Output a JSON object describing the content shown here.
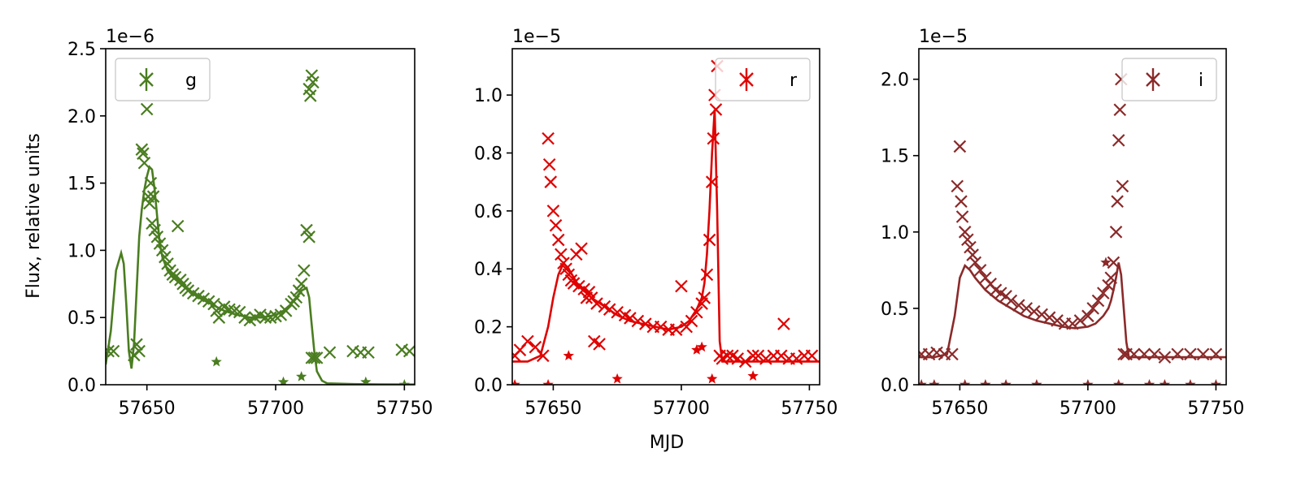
{
  "figure": {
    "xlabel": "MJD",
    "ylabel": "Flux, relative units"
  },
  "chart_data": [
    {
      "type": "scatter",
      "band": "g",
      "color": "#4a7d20",
      "scale_label": "1e−6",
      "xlim": [
        57634,
        57754
      ],
      "ylim": [
        0,
        2.5
      ],
      "xticks": [
        {
          "v": 57650,
          "label": "57650"
        },
        {
          "v": 57700,
          "label": "57700"
        },
        {
          "v": 57750,
          "label": "57750"
        }
      ],
      "yticks": [
        {
          "v": 0.0,
          "label": "0.0"
        },
        {
          "v": 0.5,
          "label": "0.5"
        },
        {
          "v": 1.0,
          "label": "1.0"
        },
        {
          "v": 1.5,
          "label": "1.5"
        },
        {
          "v": 2.0,
          "label": "2.0"
        },
        {
          "v": 2.5,
          "label": "2.5"
        }
      ],
      "legend": {
        "label": "g",
        "position": "upper-left"
      },
      "grid": false,
      "model_curve": {
        "x": [
          57634,
          57636,
          57638,
          57640,
          57641,
          57642,
          57643,
          57644,
          57645,
          57646,
          57647,
          57648,
          57649,
          57650,
          57651,
          57652,
          57653,
          57654,
          57655,
          57656,
          57658,
          57660,
          57665,
          57670,
          57675,
          57680,
          57685,
          57690,
          57695,
          57700,
          57703,
          57706,
          57708,
          57710,
          57712,
          57713,
          57714,
          57715,
          57716,
          57718,
          57720,
          57730,
          57740,
          57754
        ],
        "y": [
          0.15,
          0.4,
          0.85,
          0.98,
          0.9,
          0.6,
          0.25,
          0.12,
          0.3,
          0.7,
          1.1,
          1.3,
          1.45,
          1.55,
          1.62,
          1.6,
          1.45,
          1.25,
          1.05,
          0.95,
          0.85,
          0.8,
          0.72,
          0.65,
          0.6,
          0.55,
          0.52,
          0.5,
          0.5,
          0.52,
          0.55,
          0.6,
          0.65,
          0.7,
          0.72,
          0.65,
          0.45,
          0.25,
          0.1,
          0.03,
          0.01,
          0.005,
          0.003,
          0.002
        ]
      },
      "cross_points": {
        "x": [
          57635,
          57637,
          57645,
          57646,
          57647,
          57648,
          57648.5,
          57649,
          57650,
          57650.5,
          57651,
          57651.5,
          57652,
          57652.5,
          57653,
          57654,
          57655,
          57656,
          57657,
          57658,
          57659,
          57660,
          57661,
          57662,
          57663,
          57664,
          57665,
          57666,
          57668,
          57670,
          57672,
          57674,
          57676,
          57677,
          57678,
          57680,
          57682,
          57684,
          57686,
          57688,
          57690,
          57692,
          57694,
          57696,
          57698,
          57700,
          57702,
          57704,
          57706,
          57707,
          57708,
          57709,
          57710,
          57711,
          57712,
          57713,
          57713,
          57713.5,
          57714,
          57714,
          57714.5,
          57715,
          57716,
          57721,
          57730,
          57733,
          57736,
          57749,
          57752
        ],
        "y": [
          0.25,
          0.25,
          0.22,
          0.3,
          0.25,
          1.75,
          1.72,
          1.65,
          2.05,
          1.4,
          1.35,
          1.5,
          1.2,
          1.4,
          1.15,
          1.1,
          1.05,
          1.0,
          0.95,
          0.9,
          0.85,
          0.82,
          0.8,
          1.18,
          0.78,
          0.75,
          0.72,
          0.7,
          0.68,
          0.66,
          0.64,
          0.62,
          0.6,
          0.55,
          0.5,
          0.58,
          0.56,
          0.55,
          0.54,
          0.5,
          0.48,
          0.5,
          0.52,
          0.5,
          0.5,
          0.51,
          0.52,
          0.55,
          0.6,
          0.62,
          0.65,
          0.7,
          0.75,
          0.85,
          1.15,
          1.1,
          2.2,
          2.15,
          2.3,
          0.2,
          2.25,
          0.2,
          0.2,
          0.24,
          0.25,
          0.24,
          0.24,
          0.26,
          0.25
        ]
      },
      "star_points": {
        "x": [
          57677,
          57703,
          57710,
          57735,
          57750
        ],
        "y": [
          0.17,
          0.02,
          0.06,
          0.02,
          0.0
        ]
      }
    },
    {
      "type": "scatter",
      "band": "r",
      "color": "#e00000",
      "scale_label": "1e−5",
      "xlim": [
        57634,
        57754
      ],
      "ylim": [
        0,
        1.16
      ],
      "xticks": [
        {
          "v": 57650,
          "label": "57650"
        },
        {
          "v": 57700,
          "label": "57700"
        },
        {
          "v": 57750,
          "label": "57750"
        }
      ],
      "yticks": [
        {
          "v": 0.0,
          "label": "0.0"
        },
        {
          "v": 0.2,
          "label": "0.2"
        },
        {
          "v": 0.4,
          "label": "0.4"
        },
        {
          "v": 0.6,
          "label": "0.6"
        },
        {
          "v": 0.8,
          "label": "0.8"
        },
        {
          "v": 1.0,
          "label": "1.0"
        }
      ],
      "legend": {
        "label": "r",
        "position": "upper-right"
      },
      "grid": false,
      "model_curve": {
        "x": [
          57634,
          57640,
          57645,
          57648,
          57650,
          57652,
          57654,
          57656,
          57658,
          57660,
          57665,
          57670,
          57675,
          57680,
          57685,
          57690,
          57695,
          57700,
          57703,
          57706,
          57708,
          57709,
          57710,
          57711,
          57712,
          57713,
          57714,
          57715,
          57716,
          57720,
          57730,
          57740,
          57754
        ],
        "y": [
          0.08,
          0.08,
          0.1,
          0.2,
          0.3,
          0.38,
          0.42,
          0.4,
          0.37,
          0.34,
          0.3,
          0.27,
          0.24,
          0.22,
          0.21,
          0.2,
          0.19,
          0.2,
          0.22,
          0.26,
          0.3,
          0.35,
          0.45,
          0.6,
          0.8,
          0.95,
          0.6,
          0.15,
          0.08,
          0.08,
          0.08,
          0.08,
          0.08
        ]
      },
      "cross_points": {
        "x": [
          57635,
          57637,
          57640,
          57643,
          57646,
          57648,
          57648.5,
          57649,
          57650,
          57651,
          57652,
          57653,
          57654,
          57655,
          57656,
          57657,
          57658,
          57659,
          57660,
          57661,
          57662,
          57663,
          57664,
          57665,
          57666,
          57667,
          57668,
          57670,
          57672,
          57675,
          57678,
          57680,
          57683,
          57686,
          57689,
          57692,
          57695,
          57698,
          57700,
          57702,
          57704,
          57706,
          57708,
          57709,
          57710,
          57711,
          57712,
          57712.5,
          57713,
          57713.5,
          57714,
          57715,
          57716,
          57718,
          57720,
          57722,
          57725,
          57728,
          57730,
          57733,
          57736,
          57739,
          57740,
          57742,
          57745,
          57748,
          57751
        ],
        "y": [
          0.1,
          0.12,
          0.15,
          0.13,
          0.1,
          0.85,
          0.76,
          0.7,
          0.6,
          0.55,
          0.5,
          0.45,
          0.42,
          0.4,
          0.38,
          0.36,
          0.35,
          0.45,
          0.34,
          0.47,
          0.33,
          0.3,
          0.32,
          0.3,
          0.15,
          0.28,
          0.14,
          0.27,
          0.26,
          0.25,
          0.24,
          0.23,
          0.22,
          0.21,
          0.2,
          0.2,
          0.19,
          0.19,
          0.34,
          0.2,
          0.22,
          0.25,
          0.28,
          0.3,
          0.38,
          0.5,
          0.7,
          0.85,
          1.0,
          0.95,
          1.1,
          0.1,
          0.09,
          0.1,
          0.1,
          0.09,
          0.08,
          0.1,
          0.1,
          0.09,
          0.1,
          0.1,
          0.21,
          0.09,
          0.09,
          0.1,
          0.1
        ]
      },
      "star_points": {
        "x": [
          57635,
          57648,
          57656,
          57675,
          57706,
          57708,
          57712,
          57728
        ],
        "y": [
          0.0,
          0.0,
          0.1,
          0.02,
          0.12,
          0.13,
          0.02,
          0.03
        ]
      }
    },
    {
      "type": "scatter",
      "band": "i",
      "color": "#8b2a2a",
      "scale_label": "1e−5",
      "xlim": [
        57634,
        57754
      ],
      "ylim": [
        0,
        2.2
      ],
      "xticks": [
        {
          "v": 57650,
          "label": "57650"
        },
        {
          "v": 57700,
          "label": "57700"
        },
        {
          "v": 57750,
          "label": "57750"
        }
      ],
      "yticks": [
        {
          "v": 0.0,
          "label": "0.0"
        },
        {
          "v": 0.5,
          "label": "0.5"
        },
        {
          "v": 1.0,
          "label": "1.0"
        },
        {
          "v": 1.5,
          "label": "1.5"
        },
        {
          "v": 2.0,
          "label": "2.0"
        }
      ],
      "legend": {
        "label": "i",
        "position": "upper-right"
      },
      "grid": false,
      "model_curve": {
        "x": [
          57634,
          57640,
          57645,
          57648,
          57650,
          57652,
          57654,
          57656,
          57660,
          57665,
          57670,
          57675,
          57680,
          57685,
          57690,
          57695,
          57700,
          57703,
          57706,
          57708,
          57709,
          57710,
          57711,
          57712,
          57713,
          57714,
          57715,
          57716,
          57720,
          57730,
          57740,
          57754
        ],
        "y": [
          0.18,
          0.18,
          0.2,
          0.45,
          0.7,
          0.78,
          0.75,
          0.7,
          0.62,
          0.55,
          0.5,
          0.45,
          0.42,
          0.4,
          0.38,
          0.37,
          0.38,
          0.4,
          0.45,
          0.5,
          0.55,
          0.62,
          0.7,
          0.8,
          0.72,
          0.5,
          0.28,
          0.18,
          0.18,
          0.18,
          0.18,
          0.18
        ]
      },
      "cross_points": {
        "x": [
          57635,
          57638,
          57641,
          57644,
          57647,
          57649,
          57650,
          57650.5,
          57651,
          57652,
          57653,
          57654,
          57655,
          57656,
          57658,
          57660,
          57662,
          57664,
          57666,
          57668,
          57670,
          57673,
          57676,
          57679,
          57682,
          57685,
          57688,
          57691,
          57694,
          57697,
          57700,
          57702,
          57704,
          57706,
          57708,
          57709,
          57710,
          57711,
          57711.5,
          57712,
          57712.5,
          57713,
          57713.5,
          57714,
          57715,
          57718,
          57722,
          57726,
          57730,
          57735,
          57740,
          57745,
          57750
        ],
        "y": [
          0.2,
          0.2,
          0.21,
          0.2,
          0.2,
          1.3,
          1.56,
          1.2,
          1.1,
          1.0,
          0.95,
          0.9,
          0.85,
          0.8,
          0.75,
          0.7,
          0.66,
          0.62,
          0.6,
          0.58,
          0.55,
          0.52,
          0.5,
          0.48,
          0.46,
          0.44,
          0.42,
          0.4,
          0.4,
          0.42,
          0.45,
          0.5,
          0.55,
          0.6,
          0.65,
          0.7,
          0.8,
          1.0,
          1.2,
          1.6,
          1.8,
          2.0,
          1.3,
          0.2,
          0.2,
          0.2,
          0.2,
          0.2,
          0.18,
          0.2,
          0.2,
          0.2,
          0.2
        ]
      },
      "star_points": {
        "x": [
          57635,
          57640,
          57652,
          57660,
          57668,
          57680,
          57700,
          57707,
          57712,
          57724,
          57730,
          57740,
          57750
        ],
        "y": [
          0.0,
          0.0,
          0.0,
          0.0,
          0.0,
          0.0,
          0.0,
          0.8,
          0.0,
          0.0,
          0.0,
          0.0,
          0.0
        ]
      }
    }
  ]
}
